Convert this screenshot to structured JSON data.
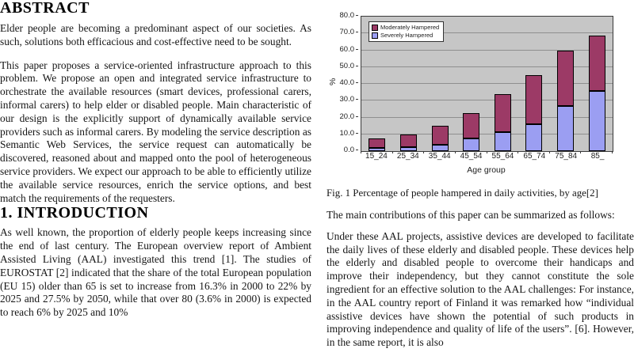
{
  "page": {
    "left_column": {
      "abstract_heading": "ABSTRACT",
      "abstract_p1": "Elder people are becoming a predominant aspect of our societies. As such, solutions both efficacious and cost-effective need to be sought.",
      "abstract_p2": "This paper proposes a service-oriented infrastructure approach to this problem. We propose an open and integrated service infrastructure to orchestrate the available resources (smart devices, professional carers, informal carers) to help elder or disabled people. Main characteristic of our design is the explicitly support of dynamically available service providers such as informal carers. By modeling the service description as Semantic Web Services, the service request can automatically be discovered, reasoned about and mapped onto the pool of heterogeneous service providers. We expect our approach to be able to efficiently utilize the available service resources, enrich the service options, and best match the requirements of the requesters.",
      "intro_heading": "1. INTRODUCTION",
      "intro_p1": "As well known, the proportion of elderly people keeps increasing since the end of last century. The European overview report of Ambient Assisted Living (AAL) investigated this trend [1]. The studies of EUROSTAT [2] indicated that the share of the total European population (EU 15) older than 65 is set to increase from 16.3% in 2000 to 22% by 2025 and 27.5% by 2050, while that over 80 (3.6% in 2000) is expected to reach 6% by 2025 and 10%"
    },
    "right_column": {
      "figure_caption": "Fig. 1 Percentage of people hampered in daily activities, by age[2]",
      "p_contributions": "The main contributions of this paper can be summarized as follows:",
      "p_aal": "Under these AAL projects, assistive devices are developed to facilitate the daily lives of these elderly and disabled people. These devices help the elderly and disabled people to overcome their handicaps and improve their independency, but they cannot constitute the sole ingredient for an effective solution to the AAL challenges: For instance, in the AAL country report of Finland it was remarked how “individual assistive devices have shown the potential of such products in improving independence and quality of life of the users”. [6]. However, in the same report, it is also"
    }
  },
  "chart_data": {
    "type": "bar",
    "stacked": true,
    "title": "",
    "xlabel": "Age group",
    "ylabel": "%",
    "categories": [
      "15_24",
      "25_34",
      "35_44",
      "45_54",
      "55_64",
      "65_74",
      "75_84",
      "85_"
    ],
    "series": [
      {
        "name": "Severely Hampered",
        "color": "#9b9ef2",
        "values": [
          2.0,
          2.5,
          4.0,
          7.5,
          11.5,
          16.0,
          27.0,
          36.0
        ]
      },
      {
        "name": "Moderately Hampered",
        "color": "#9c3a66",
        "values": [
          5.5,
          7.5,
          11.0,
          15.0,
          22.5,
          29.0,
          33.0,
          32.5
        ]
      }
    ],
    "legend_order": [
      "Moderately Hampered",
      "Severely Hampered"
    ],
    "legend_position": "top-left",
    "ylim": [
      0,
      80
    ],
    "yticks": [
      "0.0",
      "10.0",
      "20.0",
      "30.0",
      "40.0",
      "50.0",
      "60.0",
      "70.0",
      "80.0"
    ],
    "grid": true,
    "plot_background": "#c6c6c6",
    "gridline_color": "#8f8f8f"
  }
}
